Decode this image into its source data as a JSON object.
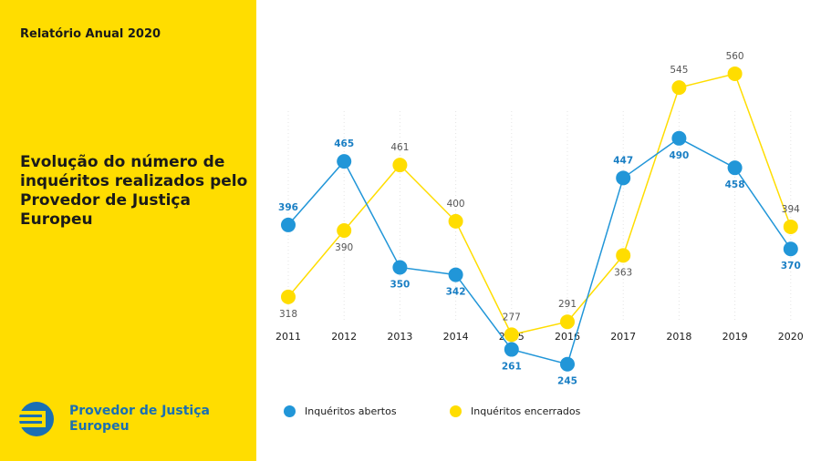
{
  "sidebar": {
    "report_label": "Relatório Anual 2020",
    "title": "Evolução do número de inquéritos realizados pelo Provedor de Justiça Europeu",
    "logo_line1": "Provedor de Justiça",
    "logo_line2": "Europeu",
    "logo_icon": "eu-ombudsman-logo-icon"
  },
  "colors": {
    "brand_yellow": "#FFDD00",
    "series_blue": "#2196D8",
    "series_yellow": "#FFDD00",
    "logo_blue": "#1a6fb3"
  },
  "chart_data": {
    "type": "line",
    "x": [
      "2011",
      "2012",
      "2013",
      "2014",
      "2015",
      "2016",
      "2017",
      "2018",
      "2019",
      "2020"
    ],
    "series": [
      {
        "name": "Inquéritos abertos",
        "color": "#2196D8",
        "values": [
          396,
          465,
          350,
          342,
          261,
          245,
          447,
          490,
          458,
          370
        ]
      },
      {
        "name": "Inquéritos encerrados",
        "color": "#FFDD00",
        "values": [
          318,
          390,
          461,
          400,
          277,
          291,
          363,
          545,
          560,
          394
        ]
      }
    ],
    "ylim": [
      140,
      640
    ],
    "grid": "vertical-dotted",
    "legend_placement": "bottom"
  }
}
